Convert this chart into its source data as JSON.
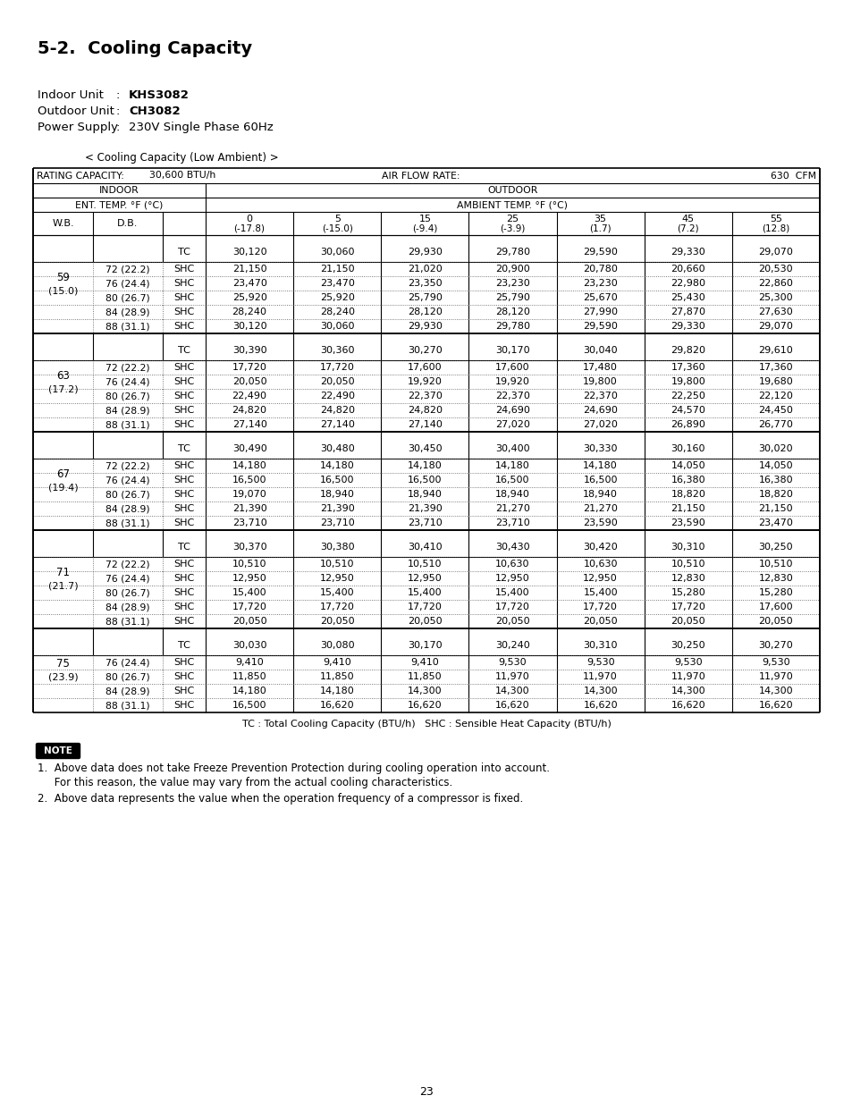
{
  "title": "5-2.  Cooling Capacity",
  "indoor_unit_label": "Indoor Unit",
  "indoor_unit_colon": "   :  ",
  "indoor_unit": "KHS3082",
  "outdoor_unit_label": "Outdoor Unit",
  "outdoor_unit_colon": "  :  ",
  "outdoor_unit": "CH3082",
  "power_supply_label": "Power Supply",
  "power_supply_colon": " : ",
  "power_supply": "230V Single Phase 60Hz",
  "subtitle": "< Cooling Capacity (Low Ambient) >",
  "rating_capacity": "30,600 BTU/h",
  "air_flow_rate": "630  CFM",
  "table_data": [
    {
      "wb": "59",
      "wb_c": "(15.0)",
      "db": "",
      "type": "TC",
      "vals": [
        "30,120",
        "30,060",
        "29,930",
        "29,780",
        "29,590",
        "29,330",
        "29,070"
      ]
    },
    {
      "wb": "",
      "wb_c": "",
      "db": "72 (22.2)",
      "type": "SHC",
      "vals": [
        "21,150",
        "21,150",
        "21,020",
        "20,900",
        "20,780",
        "20,660",
        "20,530"
      ]
    },
    {
      "wb": "59",
      "wb_c": "(15.0)",
      "db": "76 (24.4)",
      "type": "SHC",
      "vals": [
        "23,470",
        "23,470",
        "23,350",
        "23,230",
        "23,230",
        "22,980",
        "22,860"
      ]
    },
    {
      "wb": "",
      "wb_c": "",
      "db": "80 (26.7)",
      "type": "SHC",
      "vals": [
        "25,920",
        "25,920",
        "25,790",
        "25,790",
        "25,670",
        "25,430",
        "25,300"
      ]
    },
    {
      "wb": "",
      "wb_c": "",
      "db": "84 (28.9)",
      "type": "SHC",
      "vals": [
        "28,240",
        "28,240",
        "28,120",
        "28,120",
        "27,990",
        "27,870",
        "27,630"
      ]
    },
    {
      "wb": "",
      "wb_c": "",
      "db": "88 (31.1)",
      "type": "SHC",
      "vals": [
        "30,120",
        "30,060",
        "29,930",
        "29,780",
        "29,590",
        "29,330",
        "29,070"
      ]
    },
    {
      "wb": "63",
      "wb_c": "(17.2)",
      "db": "",
      "type": "TC",
      "vals": [
        "30,390",
        "30,360",
        "30,270",
        "30,170",
        "30,040",
        "29,820",
        "29,610"
      ]
    },
    {
      "wb": "",
      "wb_c": "",
      "db": "72 (22.2)",
      "type": "SHC",
      "vals": [
        "17,720",
        "17,720",
        "17,600",
        "17,600",
        "17,480",
        "17,360",
        "17,360"
      ]
    },
    {
      "wb": "63",
      "wb_c": "(17.2)",
      "db": "76 (24.4)",
      "type": "SHC",
      "vals": [
        "20,050",
        "20,050",
        "19,920",
        "19,920",
        "19,800",
        "19,800",
        "19,680"
      ]
    },
    {
      "wb": "",
      "wb_c": "",
      "db": "80 (26.7)",
      "type": "SHC",
      "vals": [
        "22,490",
        "22,490",
        "22,370",
        "22,370",
        "22,370",
        "22,250",
        "22,120"
      ]
    },
    {
      "wb": "",
      "wb_c": "",
      "db": "84 (28.9)",
      "type": "SHC",
      "vals": [
        "24,820",
        "24,820",
        "24,820",
        "24,690",
        "24,690",
        "24,570",
        "24,450"
      ]
    },
    {
      "wb": "",
      "wb_c": "",
      "db": "88 (31.1)",
      "type": "SHC",
      "vals": [
        "27,140",
        "27,140",
        "27,140",
        "27,020",
        "27,020",
        "26,890",
        "26,770"
      ]
    },
    {
      "wb": "67",
      "wb_c": "(19.4)",
      "db": "",
      "type": "TC",
      "vals": [
        "30,490",
        "30,480",
        "30,450",
        "30,400",
        "30,330",
        "30,160",
        "30,020"
      ]
    },
    {
      "wb": "",
      "wb_c": "",
      "db": "72 (22.2)",
      "type": "SHC",
      "vals": [
        "14,180",
        "14,180",
        "14,180",
        "14,180",
        "14,180",
        "14,050",
        "14,050"
      ]
    },
    {
      "wb": "67",
      "wb_c": "(19.4)",
      "db": "76 (24.4)",
      "type": "SHC",
      "vals": [
        "16,500",
        "16,500",
        "16,500",
        "16,500",
        "16,500",
        "16,380",
        "16,380"
      ]
    },
    {
      "wb": "",
      "wb_c": "",
      "db": "80 (26.7)",
      "type": "SHC",
      "vals": [
        "19,070",
        "18,940",
        "18,940",
        "18,940",
        "18,940",
        "18,820",
        "18,820"
      ]
    },
    {
      "wb": "",
      "wb_c": "",
      "db": "84 (28.9)",
      "type": "SHC",
      "vals": [
        "21,390",
        "21,390",
        "21,390",
        "21,270",
        "21,270",
        "21,150",
        "21,150"
      ]
    },
    {
      "wb": "",
      "wb_c": "",
      "db": "88 (31.1)",
      "type": "SHC",
      "vals": [
        "23,710",
        "23,710",
        "23,710",
        "23,710",
        "23,590",
        "23,590",
        "23,470"
      ]
    },
    {
      "wb": "71",
      "wb_c": "(21.7)",
      "db": "",
      "type": "TC",
      "vals": [
        "30,370",
        "30,380",
        "30,410",
        "30,430",
        "30,420",
        "30,310",
        "30,250"
      ]
    },
    {
      "wb": "",
      "wb_c": "",
      "db": "72 (22.2)",
      "type": "SHC",
      "vals": [
        "10,510",
        "10,510",
        "10,510",
        "10,630",
        "10,630",
        "10,510",
        "10,510"
      ]
    },
    {
      "wb": "71",
      "wb_c": "(21.7)",
      "db": "76 (24.4)",
      "type": "SHC",
      "vals": [
        "12,950",
        "12,950",
        "12,950",
        "12,950",
        "12,950",
        "12,830",
        "12,830"
      ]
    },
    {
      "wb": "",
      "wb_c": "",
      "db": "80 (26.7)",
      "type": "SHC",
      "vals": [
        "15,400",
        "15,400",
        "15,400",
        "15,400",
        "15,400",
        "15,280",
        "15,280"
      ]
    },
    {
      "wb": "",
      "wb_c": "",
      "db": "84 (28.9)",
      "type": "SHC",
      "vals": [
        "17,720",
        "17,720",
        "17,720",
        "17,720",
        "17,720",
        "17,720",
        "17,600"
      ]
    },
    {
      "wb": "",
      "wb_c": "",
      "db": "88 (31.1)",
      "type": "SHC",
      "vals": [
        "20,050",
        "20,050",
        "20,050",
        "20,050",
        "20,050",
        "20,050",
        "20,050"
      ]
    },
    {
      "wb": "75",
      "wb_c": "(23.9)",
      "db": "",
      "type": "TC",
      "vals": [
        "30,030",
        "30,080",
        "30,170",
        "30,240",
        "30,310",
        "30,250",
        "30,270"
      ]
    },
    {
      "wb": "",
      "wb_c": "",
      "db": "76 (24.4)",
      "type": "SHC",
      "vals": [
        "9,410",
        "9,410",
        "9,410",
        "9,530",
        "9,530",
        "9,530",
        "9,530"
      ]
    },
    {
      "wb": "75",
      "wb_c": "(23.9)",
      "db": "80 (26.7)",
      "type": "SHC",
      "vals": [
        "11,850",
        "11,850",
        "11,850",
        "11,970",
        "11,970",
        "11,970",
        "11,970"
      ]
    },
    {
      "wb": "",
      "wb_c": "",
      "db": "84 (28.9)",
      "type": "SHC",
      "vals": [
        "14,180",
        "14,180",
        "14,300",
        "14,300",
        "14,300",
        "14,300",
        "14,300"
      ]
    },
    {
      "wb": "",
      "wb_c": "",
      "db": "88 (31.1)",
      "type": "SHC",
      "vals": [
        "16,500",
        "16,620",
        "16,620",
        "16,620",
        "16,620",
        "16,620",
        "16,620"
      ]
    }
  ],
  "groups": [
    {
      "wb": "59",
      "wb_c": "(15.0)",
      "tc_idx": 0,
      "shc_indices": [
        1,
        2,
        3,
        4,
        5
      ]
    },
    {
      "wb": "63",
      "wb_c": "(17.2)",
      "tc_idx": 6,
      "shc_indices": [
        7,
        8,
        9,
        10,
        11
      ]
    },
    {
      "wb": "67",
      "wb_c": "(19.4)",
      "tc_idx": 12,
      "shc_indices": [
        13,
        14,
        15,
        16,
        17
      ]
    },
    {
      "wb": "71",
      "wb_c": "(21.7)",
      "tc_idx": 18,
      "shc_indices": [
        19,
        20,
        21,
        22,
        23
      ]
    },
    {
      "wb": "75",
      "wb_c": "(23.9)",
      "tc_idx": 24,
      "shc_indices": [
        25,
        26,
        27,
        28
      ]
    }
  ],
  "footer_text": "TC : Total Cooling Capacity (BTU/h)   SHC : Sensible Heat Capacity (BTU/h)",
  "note1": "1.  Above data does not take Freeze Prevention Protection during cooling operation into account.",
  "note2": "     For this reason, the value may vary from the actual cooling characteristics.",
  "note3": "2.  Above data represents the value when the operation frequency of a compressor is fixed.",
  "page_number": "23"
}
